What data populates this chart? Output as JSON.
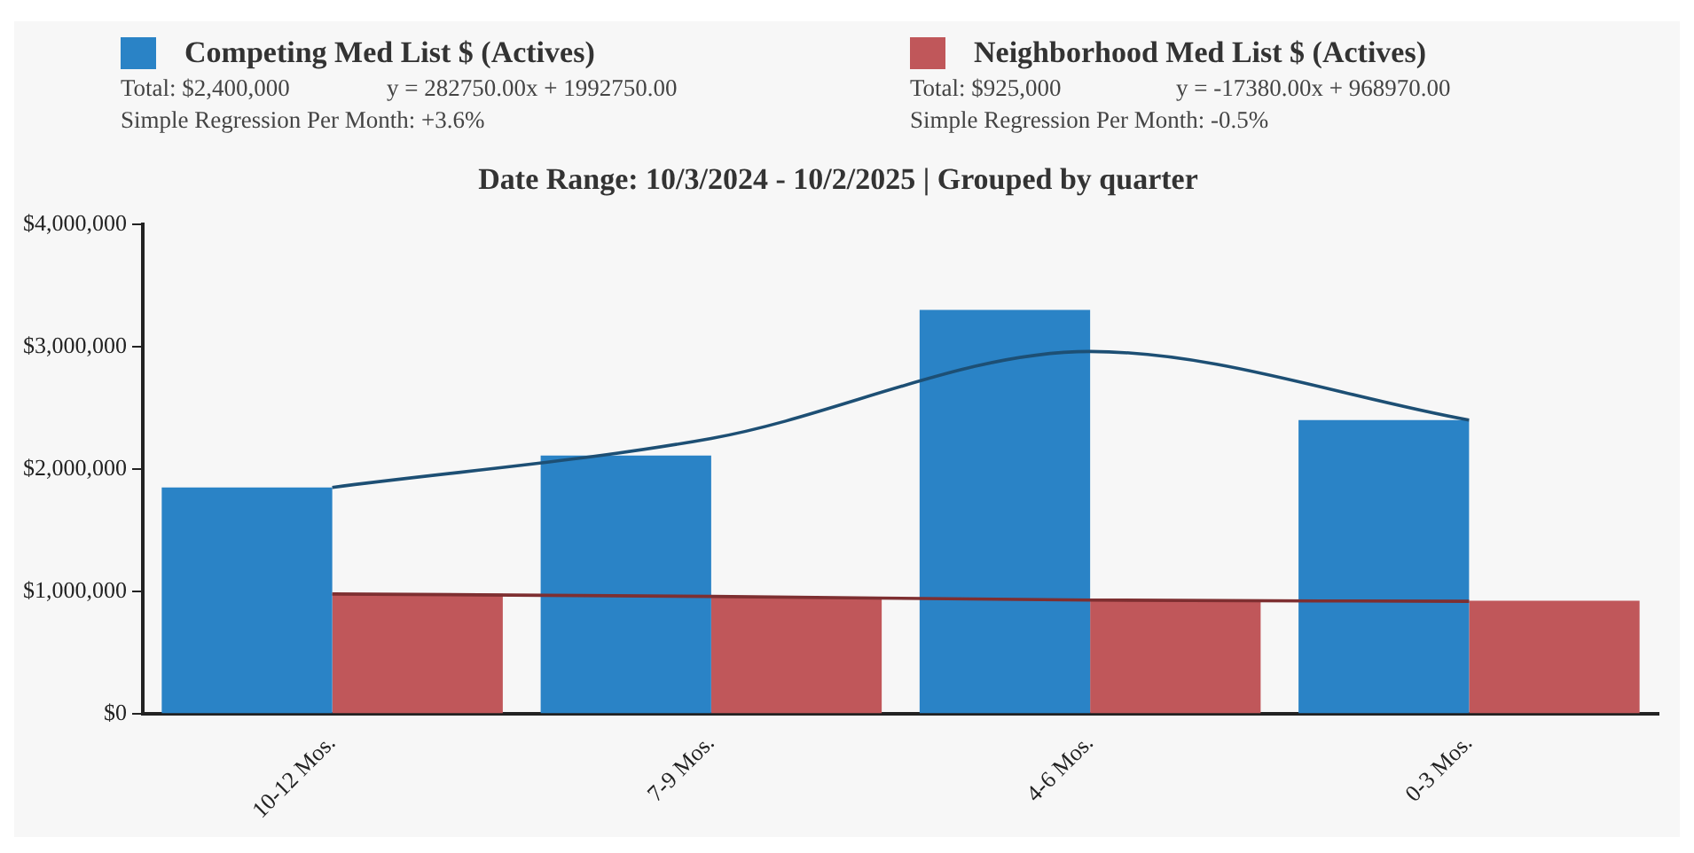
{
  "chart_data": {
    "type": "bar",
    "title": "Date Range: 10/3/2024 - 10/2/2025 | Grouped by quarter",
    "categories": [
      "10-12 Mos.",
      "7-9 Mos.",
      "4-6 Mos.",
      "0-3 Mos."
    ],
    "series": [
      {
        "name": "Competing Med List $ (Actives)",
        "color": "#2a83c6",
        "values": [
          1850000,
          2110000,
          3300000,
          2400000
        ]
      },
      {
        "name": "Neighborhood Med List $ (Actives)",
        "color": "#c0575a",
        "values": [
          980000,
          950000,
          930000,
          925000
        ]
      },
      {
        "type": "line",
        "color": "#1d4f74",
        "values": [
          1850000,
          2250000,
          2960000,
          2400000
        ]
      },
      {
        "type": "line",
        "color": "#7e2f31",
        "values": [
          980000,
          960000,
          930000,
          920000
        ]
      }
    ],
    "ylim": [
      0,
      4000000
    ],
    "yticks": [
      {
        "value": 0,
        "label": "$0"
      },
      {
        "value": 1000000,
        "label": "$1,000,000"
      },
      {
        "value": 2000000,
        "label": "$2,000,000"
      },
      {
        "value": 3000000,
        "label": "$3,000,000"
      },
      {
        "value": 4000000,
        "label": "$4,000,000"
      }
    ],
    "grid": false,
    "legend": "top",
    "annotations": [
      "Total: $2,400,000",
      "y = 282750.00x + 1992750.00",
      "Simple Regression Per Month: +3.6%",
      "Total: $925,000",
      "y = -17380.00x + 968970.00",
      "Simple Regression Per Month: -0.5%"
    ]
  }
}
